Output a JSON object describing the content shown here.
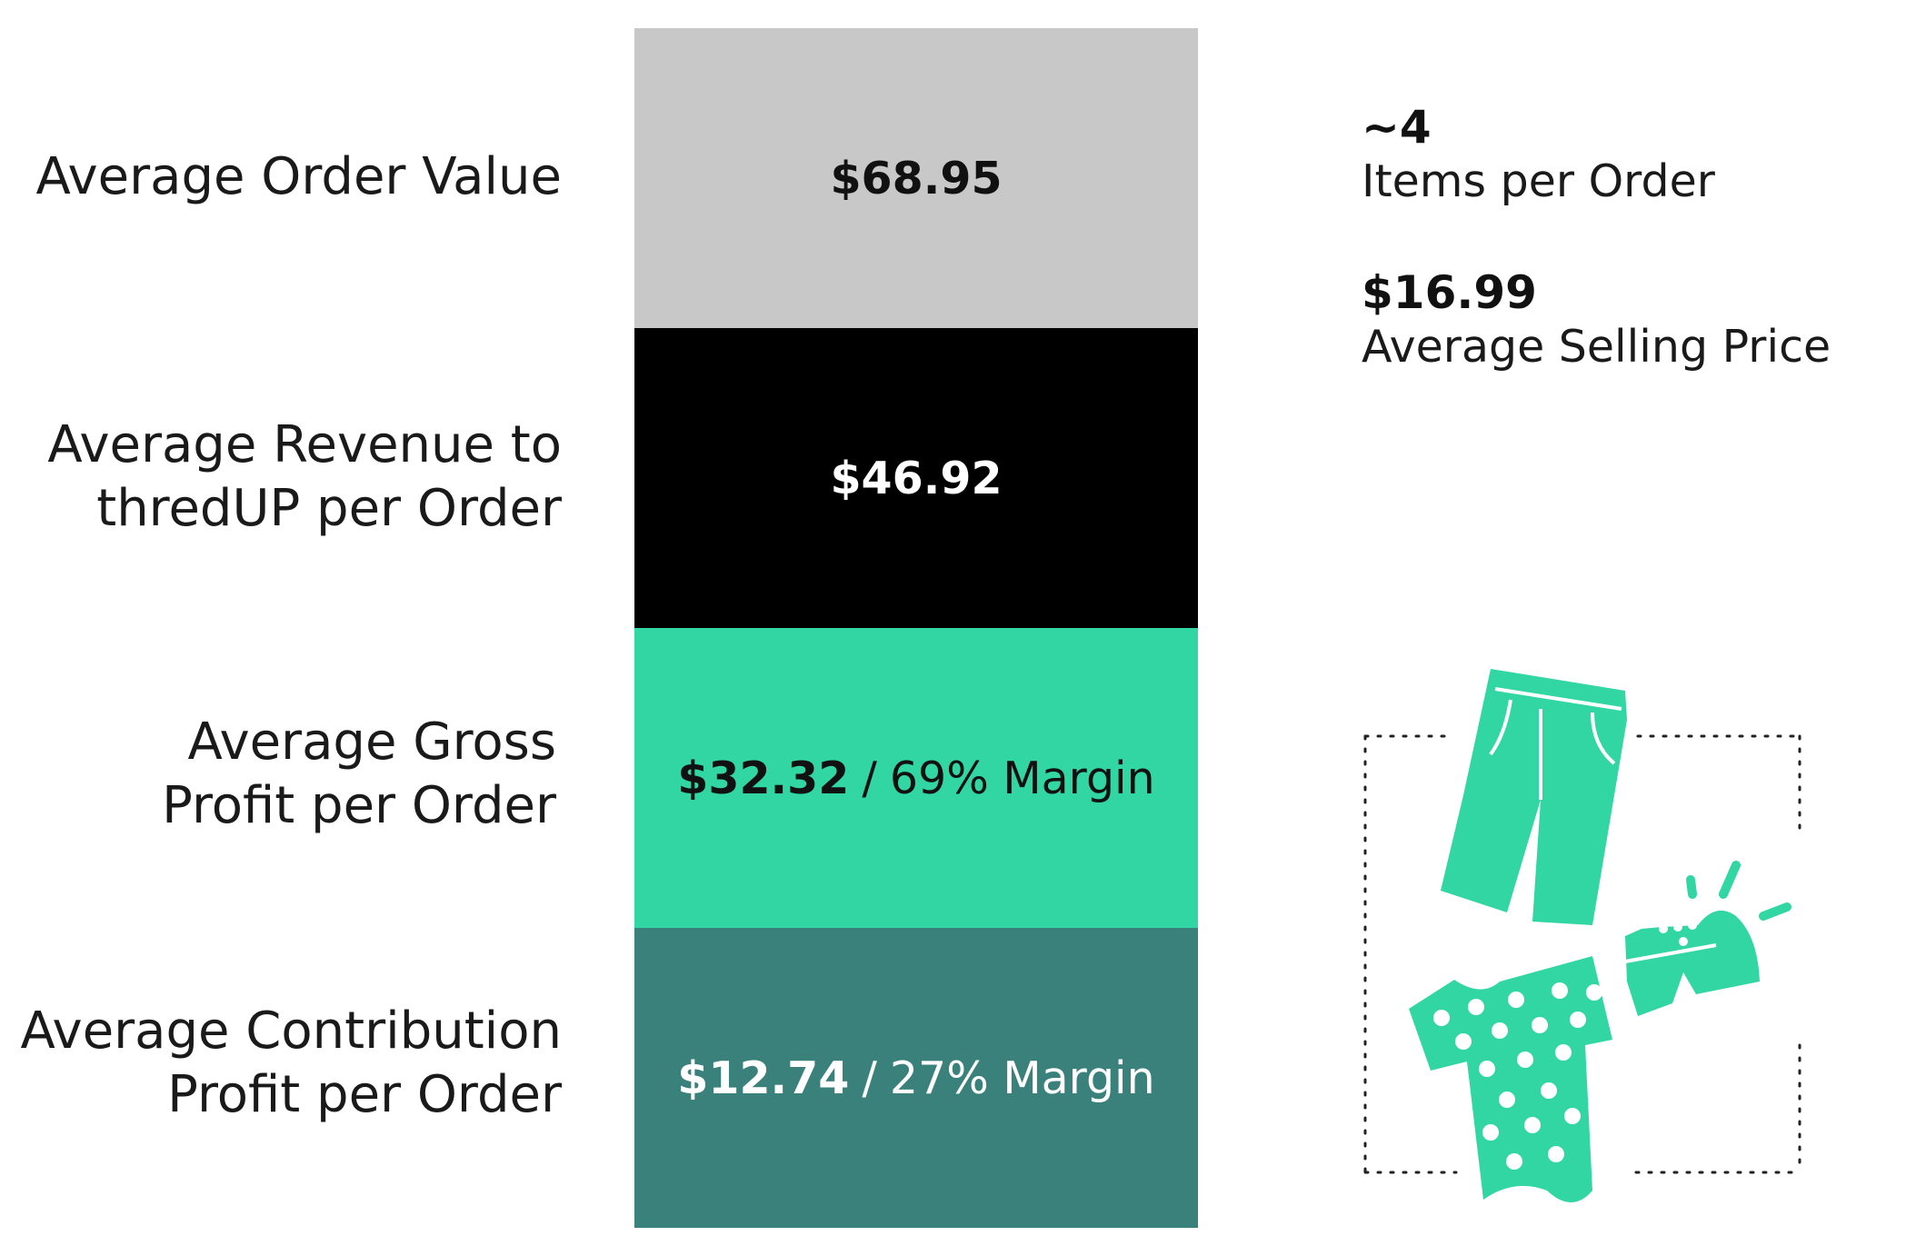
{
  "rows": [
    {
      "label_lines": [
        "Average Order Value"
      ],
      "value": "$68.95",
      "separator": "",
      "suffix": ""
    },
    {
      "label_lines": [
        "Average Revenue to",
        "thredUP per Order"
      ],
      "value": "$46.92",
      "separator": "",
      "suffix": ""
    },
    {
      "label_lines": [
        "Average Gross",
        "Profit per Order"
      ],
      "value": "$32.32",
      "separator": "/",
      "suffix": "69% Margin"
    },
    {
      "label_lines": [
        "Average Contribution",
        "Profit per Order"
      ],
      "value": "$12.74",
      "separator": "/",
      "suffix": "27% Margin"
    }
  ],
  "stats": [
    {
      "value": "~4",
      "label": "Items per Order"
    },
    {
      "value": "$16.99",
      "label": "Average Selling Price"
    }
  ],
  "colors": {
    "order_value": "#c8c8c8",
    "revenue": "#000000",
    "gross_profit": "#32d6a2",
    "contribution_profit": "#3a807b"
  },
  "illustration": {
    "icons": [
      "pants-icon",
      "polka-dot-shirt-icon",
      "shoe-icon"
    ]
  }
}
